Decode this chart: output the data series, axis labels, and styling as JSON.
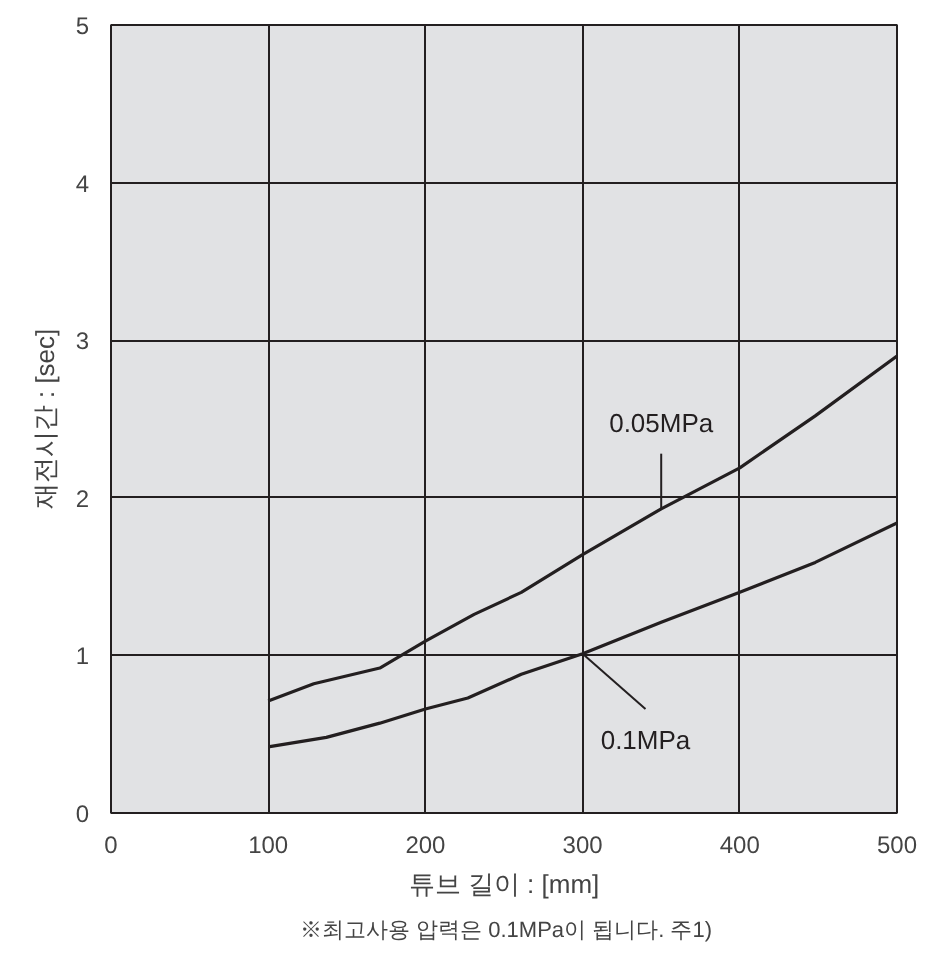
{
  "chart_data": {
    "type": "line",
    "xlabel": "튜브 길이 : [mm]",
    "ylabel": "재전시간 : [sec]",
    "annotations": [
      "※최고사용 압력은 0.1MPa이 됩니다. 주1)"
    ],
    "xlim": [
      0,
      500
    ],
    "ylim": [
      0,
      5
    ],
    "xticks": [
      0,
      100,
      200,
      300,
      400,
      500
    ],
    "yticks": [
      0,
      1,
      2,
      3,
      4,
      5
    ],
    "grid": true,
    "line_style": "solid",
    "series": [
      {
        "name": "0.05MPa",
        "color": "#231f20",
        "x": [
          100,
          129,
          171,
          200,
          231,
          261,
          300,
          350,
          400,
          448,
          500
        ],
        "values": [
          0.71,
          0.82,
          0.92,
          1.09,
          1.26,
          1.4,
          1.64,
          1.93,
          2.19,
          2.52,
          2.9
        ]
      },
      {
        "name": "0.1MPa",
        "color": "#231f20",
        "x": [
          100,
          137,
          171,
          200,
          227,
          261,
          300,
          350,
          400,
          448,
          500
        ],
        "values": [
          0.42,
          0.48,
          0.57,
          0.66,
          0.73,
          0.88,
          1.01,
          1.21,
          1.4,
          1.59,
          1.84
        ]
      }
    ]
  }
}
